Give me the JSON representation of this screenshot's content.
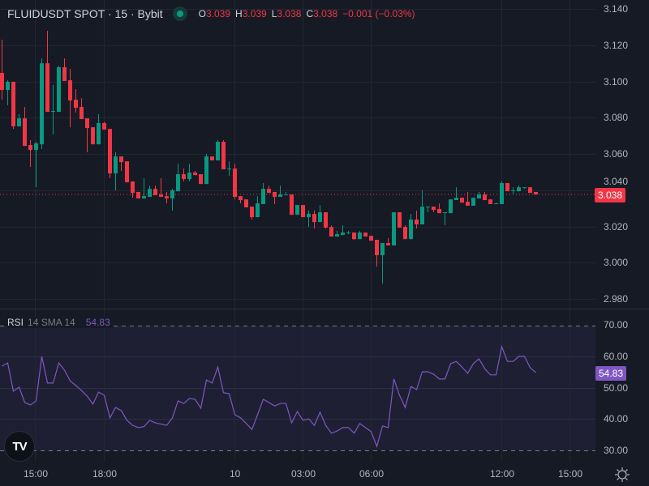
{
  "header": {
    "symbol": "FLUIDUSDT SPOT · 15 · Bybit",
    "market_status": "open",
    "o_label": "O",
    "o": "3.039",
    "h_label": "H",
    "h": "3.039",
    "l_label": "L",
    "l": "3.038",
    "c_label": "C",
    "c": "3.038",
    "change": "−0.001 (−0.03%)"
  },
  "colors": {
    "up": "#089981",
    "down": "#f23645",
    "rsi": "#7e57c2",
    "background": "#161a25",
    "grid": "#232632"
  },
  "price_axis": {
    "ticks": [
      "3.140",
      "3.120",
      "3.100",
      "3.080",
      "3.060",
      "3.040",
      "3.020",
      "3.000",
      "2.980"
    ],
    "last_price": "3.038"
  },
  "rsi": {
    "name": "RSI",
    "params": "14 SMA 14",
    "value": "54.83",
    "ticks": [
      "70.00",
      "60.00",
      "50.00",
      "40.00",
      "30.00"
    ]
  },
  "time_axis": {
    "ticks": [
      "15:00",
      "18:00",
      "10",
      "03:00",
      "06:00",
      "12:00",
      "15:00"
    ]
  },
  "settings_icon": "gear-icon",
  "logo": "TV",
  "chart_data": {
    "type": "candlestick",
    "title": "FLUIDUSDT SPOT · 15 · Bybit",
    "interval": "15",
    "ylim": [
      2.975,
      3.145
    ],
    "ohlc": [
      [
        3.1047,
        3.123,
        3.0899,
        3.0953
      ],
      [
        3.0953,
        3.1006,
        3.0868,
        3.0998
      ],
      [
        3.0998,
        3.0998,
        3.0738,
        3.0752
      ],
      [
        3.0752,
        3.0819,
        3.0752,
        3.0796
      ],
      [
        3.0796,
        3.0859,
        3.0644,
        3.0644
      ],
      [
        3.0649,
        3.0676,
        3.0528,
        3.0622
      ],
      [
        3.0622,
        3.0667,
        3.0416,
        3.0658
      ],
      [
        3.0653,
        3.1127,
        3.0627,
        3.11
      ],
      [
        3.11,
        3.1279,
        3.0832,
        3.0832
      ],
      [
        3.0832,
        3.098,
        3.0707,
        3.0837
      ],
      [
        3.0832,
        3.1087,
        3.0832,
        3.1078
      ],
      [
        3.1078,
        3.1127,
        3.1002,
        3.1002
      ],
      [
        3.1006,
        3.1069,
        3.0747,
        3.0895
      ],
      [
        3.0899,
        3.0957,
        3.0828,
        3.0854
      ],
      [
        3.0859,
        3.0908,
        3.0792,
        3.0792
      ],
      [
        3.0796,
        3.0796,
        3.0609,
        3.0743
      ],
      [
        3.0747,
        3.0747,
        3.0653,
        3.0653
      ],
      [
        3.0653,
        3.0819,
        3.0653,
        3.077
      ],
      [
        3.077,
        3.0778,
        3.0734,
        3.0734
      ],
      [
        3.0738,
        3.0738,
        3.0466,
        3.0492
      ],
      [
        3.0492,
        3.0609,
        3.0399,
        3.0586
      ],
      [
        3.0586,
        3.0586,
        3.0506,
        3.0555
      ],
      [
        3.0559,
        3.0559,
        3.0443,
        3.0443
      ],
      [
        3.0448,
        3.0448,
        3.0358,
        3.0385
      ],
      [
        3.039,
        3.039,
        3.0354,
        3.0354
      ],
      [
        3.0354,
        3.0466,
        3.0354,
        3.0367
      ],
      [
        3.0363,
        3.0425,
        3.0363,
        3.0407
      ],
      [
        3.0407,
        3.0425,
        3.0372,
        3.0372
      ],
      [
        3.0376,
        3.0466,
        3.0363,
        3.0363
      ],
      [
        3.0367,
        3.039,
        3.0327,
        3.0354
      ],
      [
        3.0354,
        3.0407,
        3.0287,
        3.0399
      ],
      [
        3.0394,
        3.0546,
        3.0394,
        3.0488
      ],
      [
        3.0488,
        3.0519,
        3.0448,
        3.0461
      ],
      [
        3.0461,
        3.0546,
        3.0448,
        3.0497
      ],
      [
        3.0497,
        3.0506,
        3.0483,
        3.0483
      ],
      [
        3.0488,
        3.0488,
        3.0434,
        3.0434
      ],
      [
        3.0434,
        3.06,
        3.0434,
        3.0586
      ],
      [
        3.0586,
        3.0586,
        3.0564,
        3.0564
      ],
      [
        3.0564,
        3.0676,
        3.0564,
        3.0667
      ],
      [
        3.0667,
        3.0676,
        3.0515,
        3.0515
      ],
      [
        3.0519,
        3.0559,
        3.0479,
        3.0519
      ],
      [
        3.0519,
        3.0546,
        3.0349,
        3.0363
      ],
      [
        3.0367,
        3.0367,
        3.0327,
        3.0345
      ],
      [
        3.0349,
        3.0349,
        3.0305,
        3.0305
      ],
      [
        3.0309,
        3.0309,
        3.0238,
        3.0251
      ],
      [
        3.0251,
        3.0367,
        3.0251,
        3.0327
      ],
      [
        3.0323,
        3.0439,
        3.0323,
        3.0407
      ],
      [
        3.0407,
        3.0425,
        3.0385,
        3.0385
      ],
      [
        3.039,
        3.039,
        3.0323,
        3.0363
      ],
      [
        3.0363,
        3.0425,
        3.0363,
        3.0376
      ],
      [
        3.0376,
        3.039,
        3.0376,
        3.0376
      ],
      [
        3.0376,
        3.0376,
        3.0264,
        3.0264
      ],
      [
        3.0264,
        3.0318,
        3.0264,
        3.0318
      ],
      [
        3.0318,
        3.0318,
        3.0251,
        3.0251
      ],
      [
        3.0251,
        3.0287,
        3.0197,
        3.0269
      ],
      [
        3.0269,
        3.0287,
        3.0188,
        3.0224
      ],
      [
        3.0224,
        3.0318,
        3.0224,
        3.0278
      ],
      [
        3.0278,
        3.0278,
        3.0188,
        3.0193
      ],
      [
        3.0197,
        3.0206,
        3.0144,
        3.0144
      ],
      [
        3.0144,
        3.0175,
        3.0144,
        3.0157
      ],
      [
        3.0153,
        3.0206,
        3.0153,
        3.0166
      ],
      [
        3.0166,
        3.0175,
        3.0157,
        3.0166
      ],
      [
        3.0166,
        3.0166,
        3.0126,
        3.013
      ],
      [
        3.013,
        3.0175,
        3.013,
        3.0166
      ],
      [
        3.0166,
        3.0166,
        3.0144,
        3.0144
      ],
      [
        3.0148,
        3.0148,
        3.0121,
        3.0121
      ],
      [
        3.0126,
        3.0126,
        2.9978,
        3.0041
      ],
      [
        3.0041,
        3.0108,
        2.9884,
        3.0108
      ],
      [
        3.0108,
        3.0135,
        3.0095,
        3.0095
      ],
      [
        3.0095,
        3.0278,
        3.0095,
        3.0278
      ],
      [
        3.0278,
        3.0278,
        3.0193,
        3.0193
      ],
      [
        3.0197,
        3.0206,
        3.013,
        3.013
      ],
      [
        3.013,
        3.0269,
        3.013,
        3.0238
      ],
      [
        3.0238,
        3.0287,
        3.0188,
        3.0211
      ],
      [
        3.0211,
        3.0399,
        3.0211,
        3.0309
      ],
      [
        3.0309,
        3.0309,
        3.0278,
        3.0309
      ],
      [
        3.0309,
        3.0309,
        3.0278,
        3.0291
      ],
      [
        3.0296,
        3.0327,
        3.0273,
        3.0273
      ],
      [
        3.0278,
        3.0278,
        3.0206,
        3.0278
      ],
      [
        3.0273,
        3.0349,
        3.0273,
        3.0349
      ],
      [
        3.0345,
        3.0416,
        3.0345,
        3.0358
      ],
      [
        3.0358,
        3.0358,
        3.0331,
        3.0331
      ],
      [
        3.0336,
        3.039,
        3.0314,
        3.0314
      ],
      [
        3.0314,
        3.0358,
        3.0314,
        3.0358
      ],
      [
        3.0354,
        3.039,
        3.0354,
        3.0376
      ],
      [
        3.0376,
        3.039,
        3.0345,
        3.0345
      ],
      [
        3.0349,
        3.0349,
        3.0323,
        3.0323
      ],
      [
        3.0323,
        3.0331,
        3.0323,
        3.0327
      ],
      [
        3.0323,
        3.0448,
        3.0323,
        3.0439
      ],
      [
        3.0439,
        3.0439,
        3.0394,
        3.0394
      ],
      [
        3.0399,
        3.0416,
        3.0376,
        3.0399
      ],
      [
        3.0394,
        3.0425,
        3.0394,
        3.0416
      ],
      [
        3.0412,
        3.0416,
        3.0407,
        3.0416
      ],
      [
        3.0416,
        3.0416,
        3.0385,
        3.0385
      ],
      [
        3.039,
        3.039,
        3.0376,
        3.0376
      ]
    ],
    "rsi_values": [
      56.9,
      57.9,
      48.9,
      50.2,
      45.3,
      44.5,
      45.8,
      60.0,
      51.5,
      51.5,
      57.9,
      55.6,
      52.2,
      50.7,
      49.1,
      47.3,
      44.8,
      48.6,
      47.6,
      40.4,
      43.7,
      42.7,
      39.6,
      38.0,
      37.3,
      37.6,
      39.6,
      38.8,
      38.4,
      38.0,
      40.4,
      45.8,
      45.0,
      46.6,
      46.3,
      43.5,
      52.5,
      51.5,
      56.6,
      48.4,
      48.1,
      41.4,
      40.4,
      38.6,
      36.7,
      41.4,
      46.3,
      45.3,
      44.2,
      45.0,
      45.0,
      38.8,
      42.4,
      39.6,
      40.1,
      38.0,
      42.2,
      38.0,
      35.5,
      36.2,
      37.3,
      37.3,
      35.5,
      38.6,
      37.3,
      36.0,
      31.3,
      37.8,
      37.3,
      52.8,
      47.6,
      43.7,
      50.4,
      49.4,
      55.1,
      55.1,
      54.3,
      52.8,
      52.8,
      57.7,
      58.4,
      56.6,
      54.6,
      57.7,
      59.2,
      56.1,
      54.1,
      54.1,
      63.1,
      58.4,
      58.4,
      60.0,
      60.0,
      56.4,
      54.83
    ],
    "rsi_bands": [
      70,
      30
    ],
    "rsi_ylim": [
      30,
      70
    ]
  }
}
